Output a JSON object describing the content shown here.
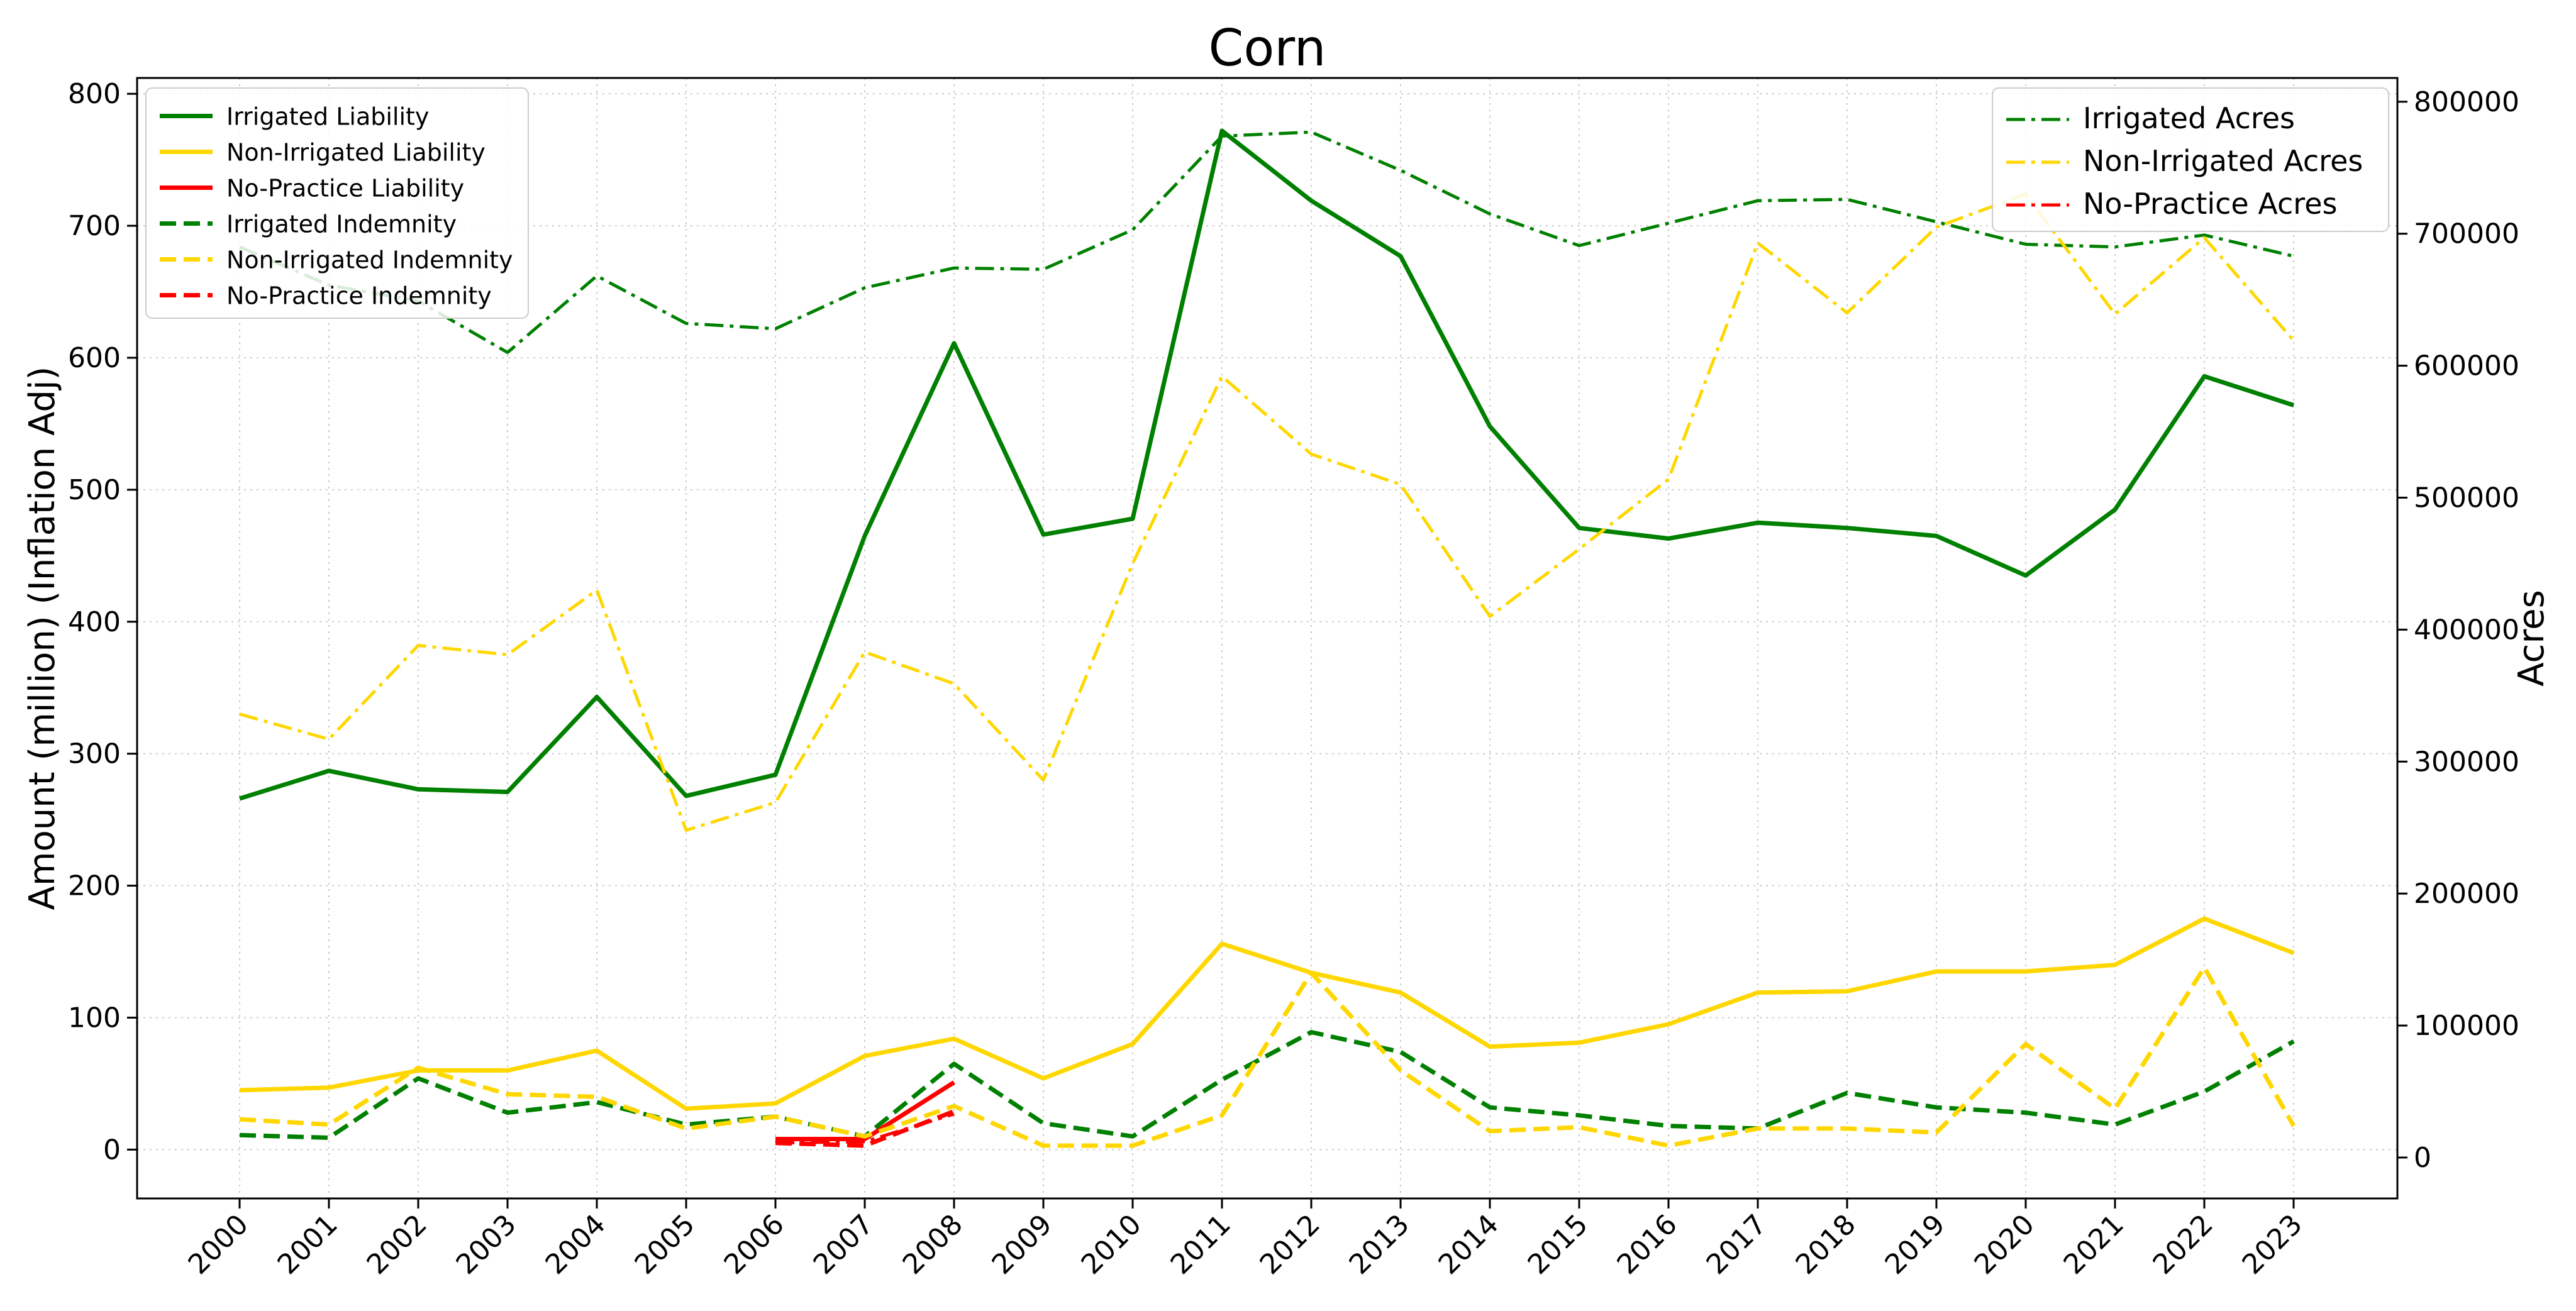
{
  "chart_data": {
    "type": "line",
    "title": "Corn",
    "xlabel": "",
    "ylabel": "Amount (million) (Inflation Adj)",
    "y2label": "Acres",
    "ylim": [
      -37,
      812
    ],
    "y2lim": [
      -31000,
      818000
    ],
    "yticks": [
      0,
      100,
      200,
      300,
      400,
      500,
      600,
      700,
      800
    ],
    "y2ticks": [
      0,
      100000,
      200000,
      300000,
      400000,
      500000,
      600000,
      700000,
      800000
    ],
    "grid": true,
    "legend_left_position": "top-left",
    "legend_right_position": "top-right",
    "x": [
      "2000",
      "2001",
      "2002",
      "2003",
      "2004",
      "2005",
      "2006",
      "2007",
      "2008",
      "2009",
      "2010",
      "2011",
      "2012",
      "2013",
      "2014",
      "2015",
      "2016",
      "2017",
      "2018",
      "2019",
      "2020",
      "2021",
      "2022",
      "2023"
    ],
    "series": [
      {
        "name": "Irrigated Liability",
        "axis": "left",
        "style": "solid",
        "color": "#008000",
        "values": [
          266,
          287,
          273,
          271,
          343,
          268,
          284,
          465,
          611,
          466,
          478,
          772,
          719,
          677,
          548,
          471,
          463,
          475,
          471,
          465,
          435,
          485,
          586,
          564
        ]
      },
      {
        "name": "Non-Irrigated Liability",
        "axis": "left",
        "style": "solid",
        "color": "#FFD700",
        "values": [
          45,
          47,
          60,
          60,
          75,
          31,
          35,
          71,
          84,
          54,
          80,
          156,
          134,
          119,
          78,
          81,
          95,
          119,
          120,
          135,
          135,
          140,
          175,
          149
        ]
      },
      {
        "name": "No-Practice Liability",
        "axis": "left",
        "style": "solid",
        "color": "#FF0000",
        "values": [
          null,
          null,
          null,
          null,
          null,
          null,
          8,
          8,
          51,
          null,
          null,
          null,
          null,
          null,
          null,
          null,
          null,
          null,
          null,
          null,
          null,
          null,
          null,
          null
        ]
      },
      {
        "name": "Irrigated Indemnity",
        "axis": "left",
        "style": "dashed",
        "color": "#008000",
        "values": [
          11,
          9,
          54,
          28,
          36,
          19,
          25,
          10,
          65,
          20,
          10,
          53,
          89,
          74,
          32,
          26,
          18,
          16,
          43,
          32,
          28,
          19,
          44,
          82
        ]
      },
      {
        "name": "Non-Irrigated Indemnity",
        "axis": "left",
        "style": "dashed",
        "color": "#FFD700",
        "values": [
          23,
          19,
          62,
          42,
          40,
          16,
          25,
          10,
          33,
          3,
          3,
          26,
          134,
          60,
          14,
          17,
          3,
          16,
          16,
          13,
          80,
          31,
          138,
          18
        ]
      },
      {
        "name": "No-Practice Indemnity",
        "axis": "left",
        "style": "dashed",
        "color": "#FF0000",
        "values": [
          null,
          null,
          null,
          null,
          null,
          null,
          5,
          3,
          29,
          null,
          null,
          null,
          null,
          null,
          null,
          null,
          null,
          null,
          null,
          null,
          null,
          null,
          null,
          null
        ]
      },
      {
        "name": "Irrigated Acres",
        "axis": "right",
        "style": "dashdot",
        "color": "#008000",
        "values": [
          690000,
          661000,
          649000,
          610000,
          668000,
          632000,
          628000,
          659000,
          674000,
          673000,
          703000,
          774000,
          777000,
          748000,
          715000,
          691000,
          708000,
          725000,
          726000,
          709000,
          692000,
          690000,
          699000,
          683000
        ]
      },
      {
        "name": "Non-Irrigated Acres",
        "axis": "right",
        "style": "dashdot",
        "color": "#FFD700",
        "values": [
          336000,
          317000,
          388000,
          381000,
          430000,
          248000,
          269000,
          383000,
          359000,
          286000,
          450000,
          592000,
          533000,
          510000,
          410000,
          461000,
          514000,
          693000,
          640000,
          705000,
          730000,
          639000,
          697000,
          619000
        ]
      },
      {
        "name": "No-Practice Acres",
        "axis": "right",
        "style": "dashdot",
        "color": "#FF0000",
        "values": [
          null,
          null,
          null,
          null,
          null,
          null,
          11000,
          12000,
          33000,
          null,
          null,
          null,
          null,
          null,
          null,
          null,
          null,
          null,
          null,
          null,
          null,
          null,
          null,
          null
        ]
      }
    ]
  }
}
